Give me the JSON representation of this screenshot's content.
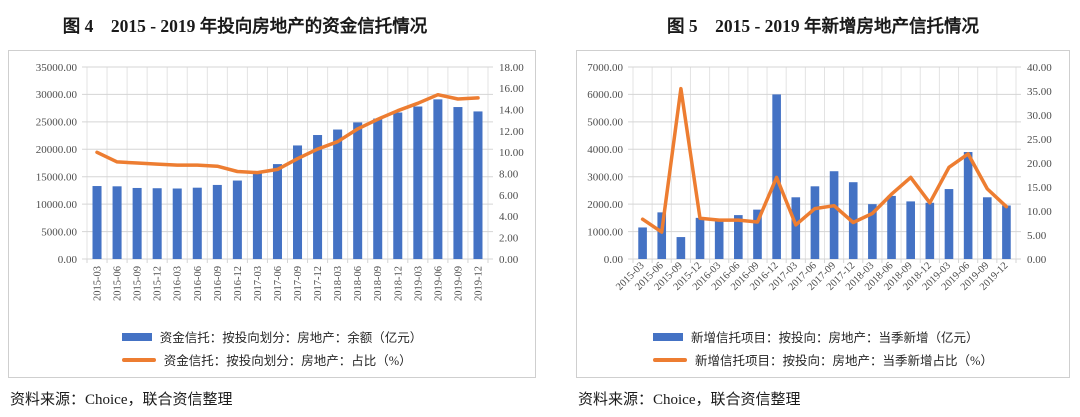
{
  "colors": {
    "bar": "#4472C4",
    "line": "#ED7D31",
    "grid": "#D5D5D5",
    "grid_vertical": "#E3E3E3",
    "axis_text": "#4D4D4D",
    "box_border": "#CFCFCF"
  },
  "sources": {
    "fig4": "资料来源：Choice，联合资信整理",
    "fig5": "资料来源：Choice，联合资信整理"
  },
  "chart_data": [
    {
      "type": "bar+line",
      "title": "图 4　2015 - 2019 年投向房地产的资金信托情况",
      "categories": [
        "2015-03",
        "2015-06",
        "2015-09",
        "2015-12",
        "2016-03",
        "2016-06",
        "2016-09",
        "2016-12",
        "2017-03",
        "2017-06",
        "2017-09",
        "2017-12",
        "2018-03",
        "2018-06",
        "2018-09",
        "2018-12",
        "2019-03",
        "2019-06",
        "2019-09",
        "2019-12"
      ],
      "series": [
        {
          "name": "资金信托：按投向划分：房地产：余额（亿元）",
          "type": "bar",
          "axis": "left",
          "values": [
            13300,
            13250,
            12950,
            12900,
            12850,
            13000,
            13500,
            14300,
            15600,
            17300,
            20700,
            22600,
            23600,
            24900,
            25600,
            26700,
            27800,
            29100,
            27700,
            26900
          ]
        },
        {
          "name": "资金信托：按投向划分：房地产：占比（%）",
          "type": "line",
          "axis": "right",
          "values": [
            10.0,
            9.1,
            9.0,
            8.9,
            8.8,
            8.8,
            8.7,
            8.2,
            8.1,
            8.4,
            9.4,
            10.3,
            11.0,
            12.2,
            13.1,
            13.9,
            14.6,
            15.4,
            15.0,
            15.1
          ]
        }
      ],
      "y_left": {
        "min": 0,
        "max": 35000,
        "step": 5000,
        "tick_format": "0.00"
      },
      "y_right": {
        "min": 0,
        "max": 18,
        "step": 2,
        "tick_format": "0.00"
      },
      "x_label_rotation": -90,
      "grid": true,
      "legend_position": "bottom"
    },
    {
      "type": "bar+line",
      "title": "图 5　2015 - 2019 年新增房地产信托情况",
      "categories": [
        "2015-03",
        "2015-06",
        "2015-09",
        "2015-12",
        "2016-03",
        "2016-06",
        "2016-09",
        "2016-12",
        "2017-03",
        "2017-06",
        "2017-09",
        "2017-12",
        "2018-03",
        "2018-06",
        "2018-09",
        "2018-12",
        "2019-03",
        "2019-06",
        "2019-09",
        "2019-12"
      ],
      "series": [
        {
          "name": "新增信托项目：按投向：房地产：当季新增（亿元）",
          "type": "bar",
          "axis": "left",
          "values": [
            1150,
            1700,
            800,
            1500,
            1400,
            1600,
            1800,
            6000,
            2250,
            2650,
            3200,
            2800,
            2000,
            2300,
            2100,
            2050,
            2550,
            3900,
            2250,
            1950
          ]
        },
        {
          "name": "新增信托项目：按投向：房地产：当季新增占比（%）",
          "type": "line",
          "axis": "right",
          "values": [
            8.3,
            5.6,
            35.5,
            8.5,
            8.1,
            8.1,
            7.7,
            17.0,
            7.1,
            10.5,
            11.1,
            7.6,
            9.5,
            13.5,
            17.0,
            11.7,
            19.1,
            21.9,
            14.6,
            10.9
          ]
        }
      ],
      "y_left": {
        "min": 0,
        "max": 7000,
        "step": 1000,
        "tick_format": "0.00"
      },
      "y_right": {
        "min": 0,
        "max": 40,
        "step": 5,
        "tick_format": "0.00"
      },
      "x_label_rotation": -45,
      "grid": true,
      "legend_position": "bottom"
    }
  ]
}
